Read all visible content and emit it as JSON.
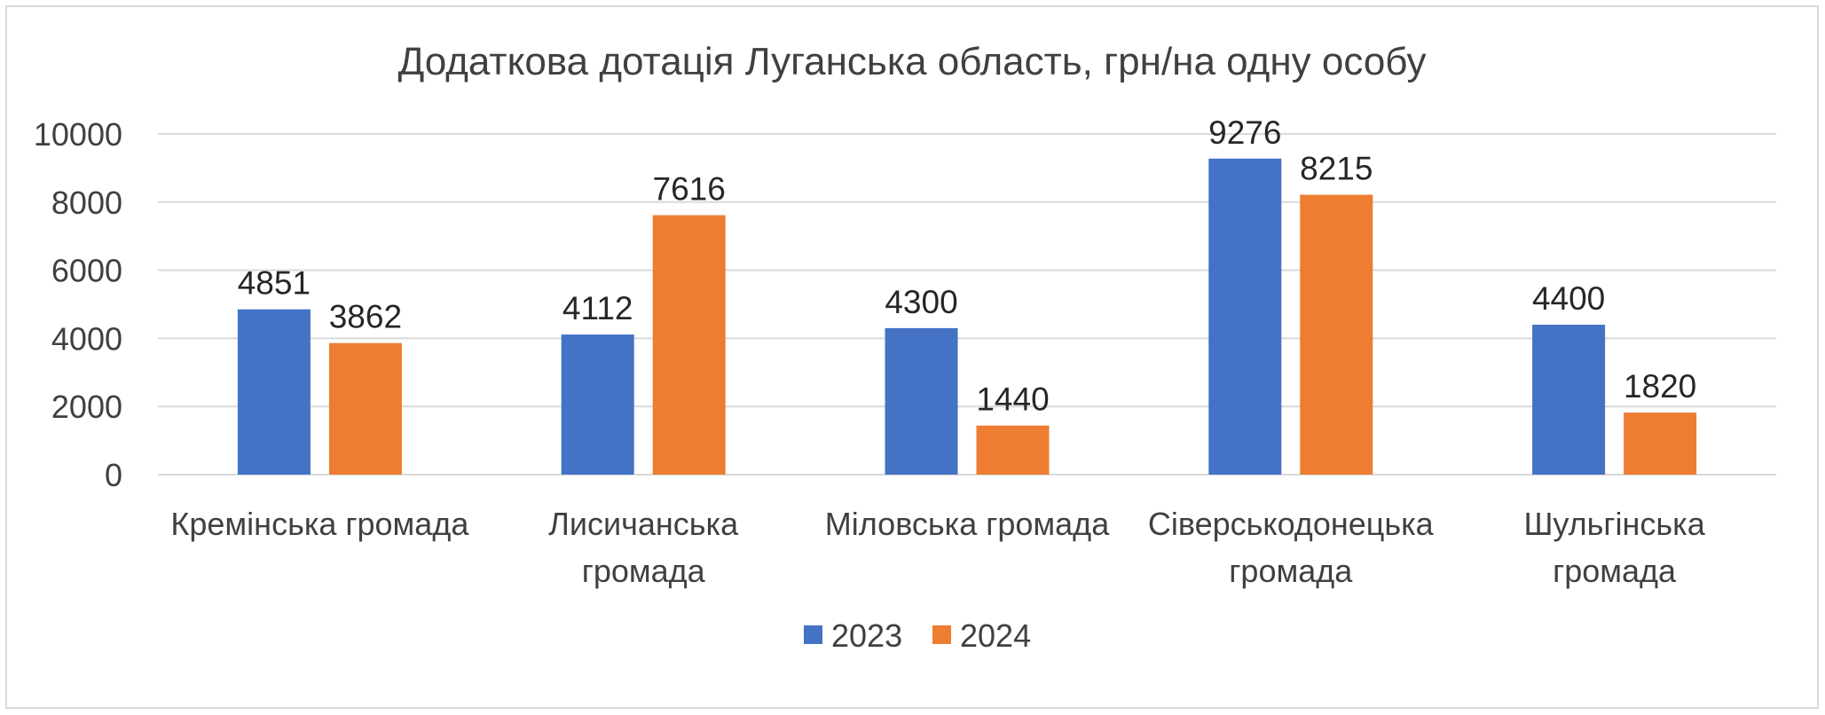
{
  "chart_data": {
    "type": "bar",
    "title": "Додаткова дотація Луганська область, грн/на одну особу",
    "categories": [
      [
        "Кремінська громада"
      ],
      [
        "Лисичанська",
        "громада"
      ],
      [
        "Міловська громада"
      ],
      [
        "Сіверськодонецька",
        "громада"
      ],
      [
        "Шульгінська",
        "громада"
      ]
    ],
    "series": [
      {
        "name": "2023",
        "color": "#4472C4",
        "values": [
          4851,
          4112,
          4300,
          9276,
          4400
        ]
      },
      {
        "name": "2024",
        "color": "#ED7D31",
        "values": [
          3862,
          7616,
          1440,
          8215,
          1820
        ]
      }
    ],
    "ylim": [
      0,
      10000
    ],
    "yticks": [
      0,
      2000,
      4000,
      6000,
      8000,
      10000
    ],
    "grid": true,
    "legend": "bottom",
    "data_labels": true
  }
}
